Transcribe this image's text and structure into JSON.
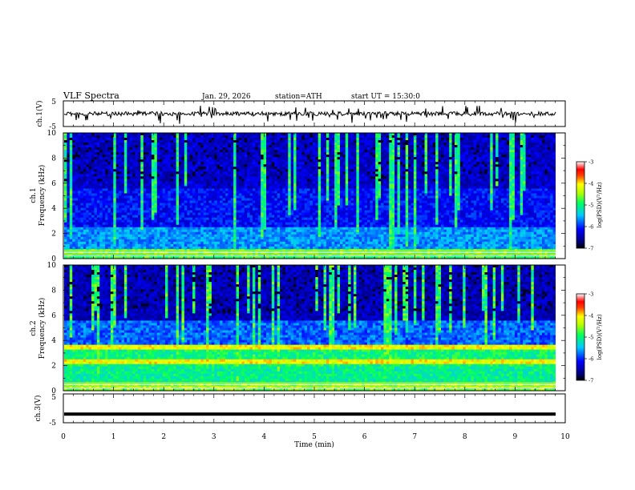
{
  "header": {
    "title": "VLF  Spectra",
    "date": "Jan. 29, 2026",
    "station": "station=ATH",
    "start_ut": "start  UT  =   15:30:0"
  },
  "chart_data": [
    {
      "type": "line",
      "name": "ch1-waveform",
      "ylabel": "ch.1(V)",
      "ylim": [
        -5,
        5
      ],
      "yticks": [
        "5",
        "-5"
      ],
      "xlim": [
        0,
        10
      ]
    },
    {
      "type": "heatmap",
      "name": "ch1-spectrogram",
      "ylabel_channel": "ch.1",
      "ylabel": "Frequency  (kHz)",
      "ylim": [
        0,
        10
      ],
      "yticks": [
        "0",
        "2",
        "4",
        "6",
        "8",
        "10"
      ],
      "xlim": [
        0,
        10
      ],
      "colorbar": {
        "label": "log(PSD)(V²/Hz)",
        "range": [
          -7,
          -3
        ],
        "ticks": [
          "-3",
          "-4",
          "-5",
          "-6",
          "-7"
        ]
      }
    },
    {
      "type": "heatmap",
      "name": "ch2-spectrogram",
      "ylabel_channel": "ch.2",
      "ylabel": "Frequency  (kHz)",
      "ylim": [
        0,
        10
      ],
      "yticks": [
        "0",
        "2",
        "4",
        "6",
        "8",
        "10"
      ],
      "xlim": [
        0,
        10
      ],
      "colorbar": {
        "label": "log(PSD)(V²/Hz)",
        "range": [
          -7,
          -3
        ],
        "ticks": [
          "-3",
          "-4",
          "-5",
          "-6",
          "-7"
        ]
      }
    },
    {
      "type": "line",
      "name": "ch3-waveform",
      "ylabel": "ch.3(V)",
      "ylim": [
        -5,
        5
      ],
      "yticks": [
        "5",
        "-5"
      ],
      "xlim": [
        0,
        10
      ],
      "xlabel": "Time  (min)",
      "xticks": [
        "0",
        "1",
        "2",
        "3",
        "4",
        "5",
        "6",
        "7",
        "8",
        "9",
        "10"
      ],
      "constant_value": -2
    }
  ],
  "colors": {
    "axis": "#000000",
    "background": "#ffffff"
  }
}
